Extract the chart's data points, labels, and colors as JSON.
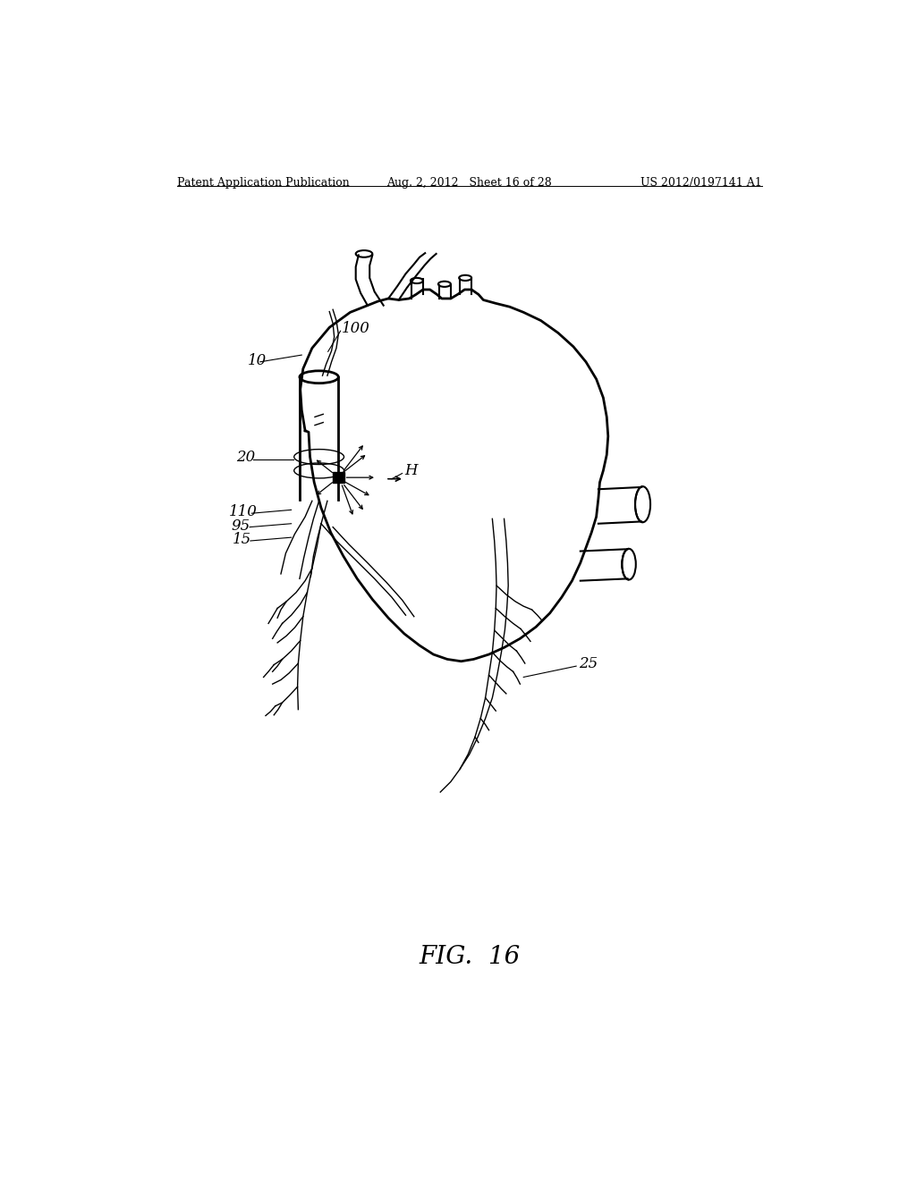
{
  "header_left": "Patent Application Publication",
  "header_mid": "Aug. 2, 2012   Sheet 16 of 28",
  "header_right": "US 2012/0197141 A1",
  "figure_label": "FIG.  16",
  "bg_color": "#ffffff",
  "line_color": "#000000",
  "fig_width": 10.24,
  "fig_height": 13.2
}
